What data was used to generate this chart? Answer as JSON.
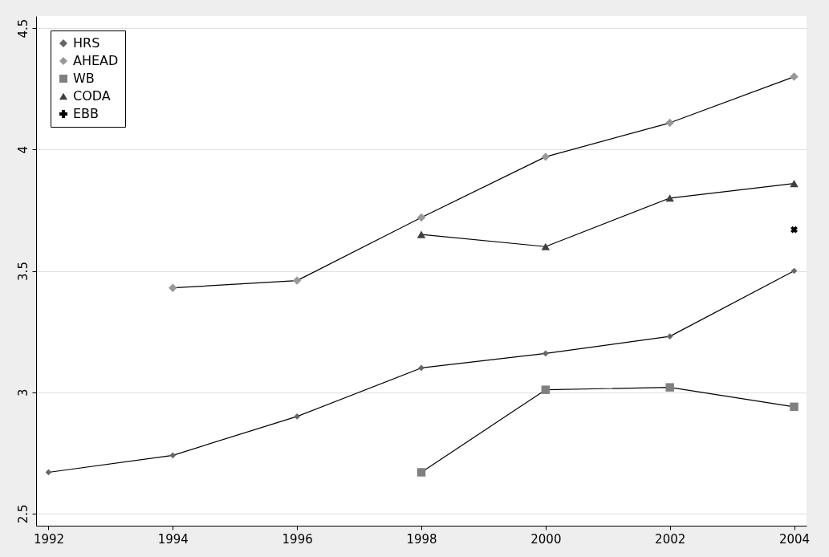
{
  "chart_data": {
    "type": "line",
    "x": [
      1992,
      1994,
      1996,
      1998,
      2000,
      2002,
      2004
    ],
    "series": [
      {
        "name": "HRS",
        "color": "#666666",
        "marker": "diamond",
        "values": [
          2.67,
          2.74,
          2.9,
          3.1,
          3.16,
          3.23,
          3.5
        ]
      },
      {
        "name": "AHEAD",
        "color": "#999999",
        "marker": "diamond",
        "values": [
          null,
          3.43,
          3.46,
          3.72,
          3.97,
          4.11,
          4.3
        ]
      },
      {
        "name": "WB",
        "color": "#808080",
        "marker": "square",
        "values": [
          null,
          null,
          null,
          2.67,
          3.01,
          3.02,
          2.94
        ]
      },
      {
        "name": "CODA",
        "color": "#404040",
        "marker": "triangle",
        "values": [
          null,
          null,
          null,
          3.65,
          3.6,
          3.8,
          3.86
        ]
      },
      {
        "name": "EBB",
        "color": "#000000",
        "marker": "cross",
        "values": [
          null,
          null,
          null,
          null,
          null,
          null,
          3.67
        ]
      }
    ],
    "xlim": [
      1991.8,
      2004.2
    ],
    "xticks": [
      1992,
      1994,
      1996,
      1998,
      2000,
      2002,
      2004
    ],
    "ylim": [
      2.45,
      4.55
    ],
    "yticks": [
      2.5,
      3,
      3.5,
      4,
      4.5
    ],
    "grid": "y",
    "legend": "top left",
    "line_style": "solid"
  }
}
